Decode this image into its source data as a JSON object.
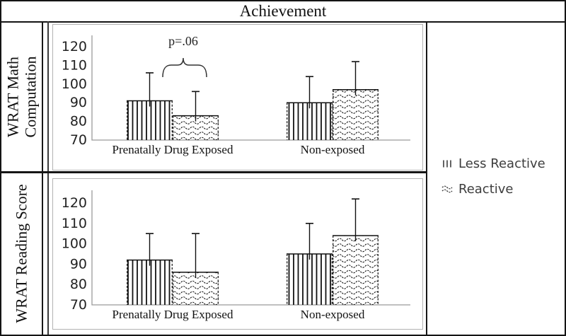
{
  "title": "Achievement",
  "row_labels": [
    {
      "lines": [
        "WRAT Math",
        "Computation"
      ]
    },
    {
      "lines": [
        "WRAT Reading Score"
      ]
    }
  ],
  "legend": {
    "items": [
      {
        "icon": "vertical-stripes-swatch-icon",
        "label": "Less Reactive"
      },
      {
        "icon": "wavy-swatch-icon",
        "label": "Reactive"
      }
    ]
  },
  "chart_data": [
    {
      "type": "bar",
      "panel_title": "WRAT Math Computation",
      "categories": [
        "Prenatally Drug Exposed",
        "Non-exposed"
      ],
      "series": [
        {
          "name": "Less Reactive",
          "pattern": "vertical-stripes",
          "values": [
            91,
            90
          ],
          "error_bar_tops": [
            106,
            104
          ]
        },
        {
          "name": "Reactive",
          "pattern": "wavy",
          "values": [
            83,
            97
          ],
          "error_bar_tops": [
            96,
            112
          ]
        }
      ],
      "ylim": [
        70,
        126
      ],
      "yticks": [
        70,
        80,
        90,
        100,
        110,
        120
      ],
      "grid": false,
      "legend_position": "right-outside",
      "annotation": {
        "text": "p=.06",
        "location": "between Prenatally Drug Exposed bars"
      }
    },
    {
      "type": "bar",
      "panel_title": "WRAT Reading Score",
      "categories": [
        "Prenatally Drug Exposed",
        "Non-exposed"
      ],
      "series": [
        {
          "name": "Less Reactive",
          "pattern": "vertical-stripes",
          "values": [
            92,
            95
          ],
          "error_bar_tops": [
            105,
            110
          ]
        },
        {
          "name": "Reactive",
          "pattern": "wavy",
          "values": [
            86,
            104
          ],
          "error_bar_tops": [
            105,
            122
          ]
        }
      ],
      "ylim": [
        70,
        126
      ],
      "yticks": [
        70,
        80,
        90,
        100,
        110,
        120
      ],
      "grid": false,
      "legend_position": "right-outside"
    }
  ],
  "colors": {
    "bar_outline": "#111111",
    "axis_line": "#9a9a9a",
    "panel_border": "#b2b2b2",
    "text": "#111111",
    "legend_text": "#3d3d3d"
  }
}
